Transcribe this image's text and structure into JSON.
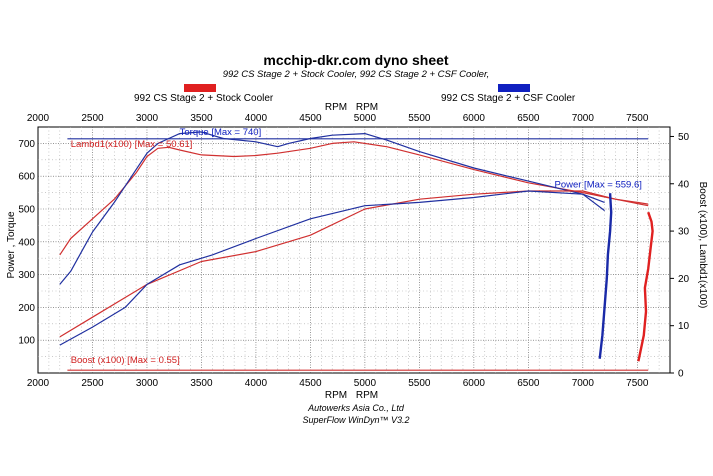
{
  "title": "mcchip-dkr.com dyno sheet",
  "subtitle": "992 CS Stage 2 + Stock Cooler, 992 CS Stage 2 + CSF Cooler,",
  "legend": [
    {
      "label": "992 CS Stage 2 + Stock Cooler",
      "color": "#e02020"
    },
    {
      "label": "992 CS Stage 2 + CSF Cooler",
      "color": "#1020c0"
    }
  ],
  "footer": {
    "line1": "Autowerks Asia Co., Ltd",
    "line2": "SuperFlow WinDyn™ V3.2"
  },
  "chart_data": {
    "type": "line",
    "xlabel_top": [
      "RPM",
      "RPM"
    ],
    "xlabel_bottom": [
      "RPM",
      "RPM"
    ],
    "ylabel_left": "Power , Torque",
    "ylabel_right": "Boost (x100), Lambd1(x100)",
    "xlim": [
      2000,
      7800
    ],
    "x_ticks": [
      2000,
      2500,
      3000,
      3500,
      4000,
      4500,
      5000,
      5500,
      6000,
      6500,
      7000,
      7500
    ],
    "ylim_left": [
      0,
      750
    ],
    "y_ticks_left": [
      100,
      200,
      300,
      400,
      500,
      600,
      700
    ],
    "ylim_right": [
      0,
      52
    ],
    "y_ticks_right": [
      0,
      10,
      20,
      30,
      40,
      50
    ],
    "grid": true,
    "annotations": {
      "torque": "Torque  [Max = 740]",
      "lambda": "Lambd1(x100)  [Max = 50.61]",
      "power": "Power  [Max = 559.6]",
      "boost": "Boost (x100)  [Max = 0.55]"
    },
    "series": [
      {
        "color": "#d03030",
        "axis": "left",
        "x": [
          2200,
          2300,
          2500,
          2700,
          2900,
          3000,
          3100,
          3200,
          3300,
          3500,
          3800,
          4000,
          4200,
          4500,
          4700,
          4900,
          5200,
          5500,
          6000,
          6500,
          7000,
          7300,
          7500,
          7600
        ],
        "y": [
          360,
          410,
          470,
          530,
          610,
          660,
          685,
          688,
          680,
          665,
          660,
          663,
          670,
          685,
          700,
          705,
          690,
          665,
          620,
          580,
          550,
          530,
          520,
          515
        ]
      },
      {
        "color": "#2030a0",
        "axis": "left",
        "x": [
          2200,
          2300,
          2400,
          2500,
          2700,
          2900,
          3000,
          3100,
          3200,
          3300,
          3500,
          3700,
          4000,
          4200,
          4300,
          4500,
          4700,
          5000,
          5200,
          5500,
          6000,
          6500,
          7000,
          7200
        ],
        "y": [
          270,
          310,
          370,
          430,
          520,
          620,
          670,
          700,
          715,
          730,
          735,
          715,
          705,
          690,
          700,
          715,
          725,
          730,
          710,
          675,
          625,
          585,
          545,
          520
        ]
      },
      {
        "color": "#d03030",
        "axis": "left",
        "x": [
          2200,
          2500,
          3000,
          3500,
          4000,
          4500,
          5000,
          5500,
          6000,
          6500,
          7000,
          7300,
          7600
        ],
        "y": [
          110,
          170,
          270,
          340,
          370,
          420,
          500,
          530,
          545,
          555,
          555,
          530,
          510
        ]
      },
      {
        "color": "#2030a0",
        "axis": "left",
        "x": [
          2200,
          2500,
          2800,
          3000,
          3300,
          3600,
          4000,
          4500,
          5000,
          5500,
          6000,
          6500,
          7000,
          7200
        ],
        "y": [
          85,
          140,
          200,
          270,
          330,
          360,
          410,
          470,
          510,
          520,
          535,
          555,
          545,
          495
        ]
      },
      {
        "color": "#1a2aa8",
        "axis": "right",
        "x": [
          7155,
          7180,
          7200,
          7220,
          7230,
          7250,
          7260,
          7255,
          7250
        ],
        "y": [
          3,
          8,
          14,
          20,
          25,
          30,
          34,
          36,
          38
        ]
      },
      {
        "color": "#e02020",
        "axis": "right",
        "x": [
          7510,
          7560,
          7580,
          7570,
          7600,
          7620,
          7640,
          7630,
          7600
        ],
        "y": [
          2.5,
          8,
          13,
          18,
          22,
          26,
          30,
          32,
          34
        ]
      },
      {
        "color": "#2030a0",
        "axis": "right",
        "x": [
          2270,
          7600
        ],
        "y": [
          49.5,
          49.5
        ]
      },
      {
        "color": "#d03030",
        "axis": "right",
        "x": [
          2270,
          7600
        ],
        "y": [
          0.6,
          0.6
        ]
      }
    ]
  }
}
